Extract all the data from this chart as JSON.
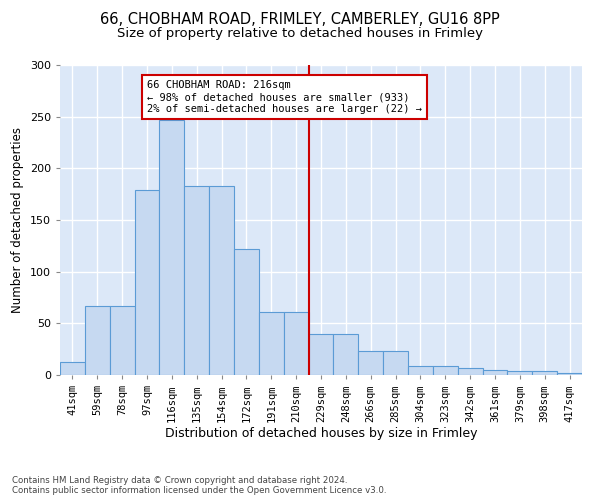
{
  "title_line1": "66, CHOBHAM ROAD, FRIMLEY, CAMBERLEY, GU16 8PP",
  "title_line2": "Size of property relative to detached houses in Frimley",
  "xlabel": "Distribution of detached houses by size in Frimley",
  "ylabel": "Number of detached properties",
  "footnote": "Contains HM Land Registry data © Crown copyright and database right 2024.\nContains public sector information licensed under the Open Government Licence v3.0.",
  "bin_labels": [
    "41sqm",
    "59sqm",
    "78sqm",
    "97sqm",
    "116sqm",
    "135sqm",
    "154sqm",
    "172sqm",
    "191sqm",
    "210sqm",
    "229sqm",
    "248sqm",
    "266sqm",
    "285sqm",
    "304sqm",
    "323sqm",
    "342sqm",
    "361sqm",
    "379sqm",
    "398sqm",
    "417sqm"
  ],
  "bar_values": [
    13,
    67,
    67,
    179,
    247,
    183,
    183,
    122,
    61,
    61,
    40,
    40,
    23,
    23,
    9,
    9,
    7,
    5,
    4,
    4,
    2
  ],
  "bar_color": "#c6d9f1",
  "bar_edge_color": "#5b9bd5",
  "vline_x_index": 9.5,
  "vline_color": "#cc0000",
  "annotation_text": "66 CHOBHAM ROAD: 216sqm\n← 98% of detached houses are smaller (933)\n2% of semi-detached houses are larger (22) →",
  "annotation_box_color": "#cc0000",
  "ylim": [
    0,
    300
  ],
  "yticks": [
    0,
    50,
    100,
    150,
    200,
    250,
    300
  ],
  "bg_color": "#dce8f8",
  "grid_color": "#ffffff",
  "title_fontsize": 10.5,
  "subtitle_fontsize": 9.5,
  "tick_fontsize": 7.5,
  "ylabel_fontsize": 8.5,
  "xlabel_fontsize": 9
}
